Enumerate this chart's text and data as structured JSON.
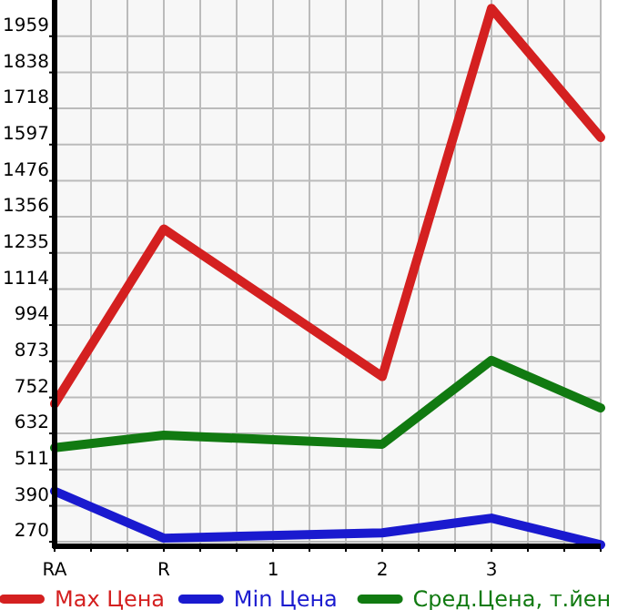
{
  "chart_data": {
    "type": "line",
    "categories": [
      "RA",
      "R",
      "1",
      "2",
      "3",
      null
    ],
    "series": [
      {
        "name": "Max Цена",
        "color": "#d42020",
        "values": [
          731,
          1315,
          null,
          822,
          2052,
          1621
        ]
      },
      {
        "name": "Min Цена",
        "color": "#1a1acf",
        "values": [
          439,
          282,
          null,
          300,
          349,
          260
        ]
      },
      {
        "name": "Сред.Цена, т.йен",
        "color": "#117a11",
        "values": [
          584,
          626,
          null,
          596,
          876,
          717
        ]
      }
    ],
    "ylim": [
      255,
      2080
    ],
    "yticks": [
      270,
      390,
      511,
      632,
      752,
      873,
      994,
      1114,
      1235,
      1356,
      1476,
      1597,
      1718,
      1838,
      1959
    ],
    "grid": true,
    "legend": "bottom",
    "marker": "none",
    "line_style": "solid"
  }
}
